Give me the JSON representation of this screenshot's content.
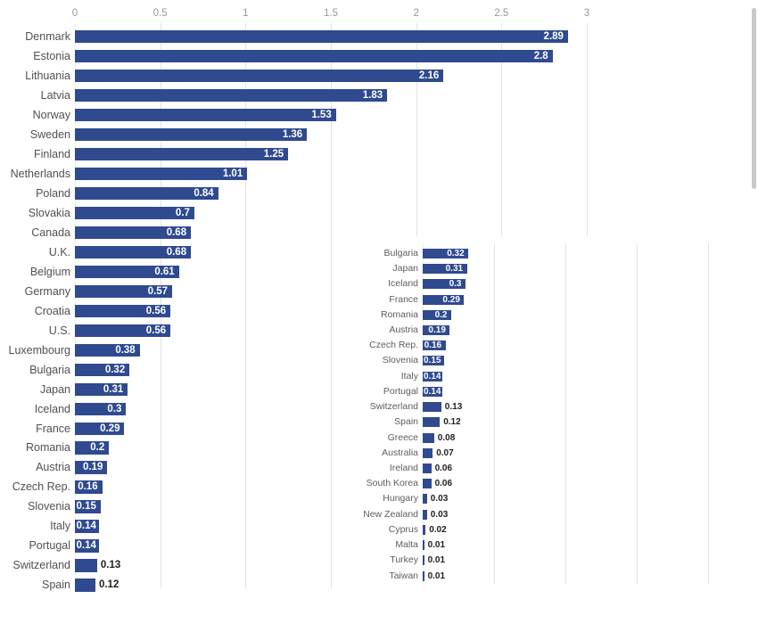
{
  "page": {
    "background": "#ffffff",
    "scrollbar_visible": true
  },
  "colors": {
    "bar": "#2f4a8f",
    "gridline": "#e3e3e3",
    "tick_label": "#97999c",
    "category_label": "#4e5156",
    "value_inside": "#ffffff",
    "value_outside": "#1d1e20",
    "scrollbar_thumb": "#c9c9c9"
  },
  "chart_data": [
    {
      "id": "main",
      "type": "bar",
      "orientation": "horizontal",
      "title": "",
      "xlabel": "",
      "ylabel": "",
      "xlim": [
        0,
        3
      ],
      "axis_ticks": [
        "0",
        "0.5",
        "1",
        "1.5",
        "2",
        "2.5",
        "3"
      ],
      "grid": true,
      "legend": false,
      "categories": [
        "Denmark",
        "Estonia",
        "Lithuania",
        "Latvia",
        "Norway",
        "Sweden",
        "Finland",
        "Netherlands",
        "Poland",
        "Slovakia",
        "Canada",
        "U.K.",
        "Belgium",
        "Germany",
        "Croatia",
        "U.S.",
        "Luxembourg",
        "Bulgaria",
        "Japan",
        "Iceland",
        "France",
        "Romania",
        "Austria",
        "Czech Rep.",
        "Slovenia",
        "Italy",
        "Portugal",
        "Switzerland",
        "Spain"
      ],
      "values": [
        2.89,
        2.8,
        2.16,
        1.83,
        1.53,
        1.36,
        1.25,
        1.01,
        0.84,
        0.7,
        0.68,
        0.68,
        0.61,
        0.57,
        0.56,
        0.56,
        0.38,
        0.32,
        0.31,
        0.3,
        0.29,
        0.2,
        0.19,
        0.16,
        0.15,
        0.14,
        0.14,
        0.13,
        0.12
      ],
      "value_labels": [
        "2.89",
        "2.8",
        "2.16",
        "1.83",
        "1.53",
        "1.36",
        "1.25",
        "1.01",
        "0.84",
        "0.7",
        "0.68",
        "0.68",
        "0.61",
        "0.57",
        "0.56",
        "0.56",
        "0.38",
        "0.32",
        "0.31",
        "0.3",
        "0.29",
        "0.2",
        "0.19",
        "0.16",
        "0.15",
        "0.14",
        "0.14",
        "0.13",
        "0.12"
      ]
    },
    {
      "id": "inset",
      "type": "bar",
      "orientation": "horizontal",
      "title": "",
      "xlabel": "",
      "ylabel": "",
      "xlim": [
        0,
        2.35
      ],
      "axis_ticks": [],
      "grid": true,
      "legend": false,
      "categories": [
        "Bulgaria",
        "Japan",
        "Iceland",
        "France",
        "Romania",
        "Austria",
        "Czech Rep.",
        "Slovenia",
        "Italy",
        "Portugal",
        "Switzerland",
        "Spain",
        "Greece",
        "Australia",
        "Ireland",
        "South Korea",
        "Hungary",
        "New Zealand",
        "Cyprus",
        "Malta",
        "Turkey",
        "Taiwan"
      ],
      "values": [
        0.32,
        0.31,
        0.3,
        0.29,
        0.2,
        0.19,
        0.16,
        0.15,
        0.14,
        0.14,
        0.13,
        0.12,
        0.08,
        0.07,
        0.06,
        0.06,
        0.03,
        0.03,
        0.02,
        0.01,
        0.01,
        0.01
      ],
      "value_labels": [
        "0.32",
        "0.31",
        "0.3",
        "0.29",
        "0.2",
        "0.19",
        "0.16",
        "0.15",
        "0.14",
        "0.14",
        "0.13",
        "0.12",
        "0.08",
        "0.07",
        "0.06",
        "0.06",
        "0.03",
        "0.03",
        "0.02",
        "0.01",
        "0.01",
        "0.01"
      ]
    }
  ]
}
